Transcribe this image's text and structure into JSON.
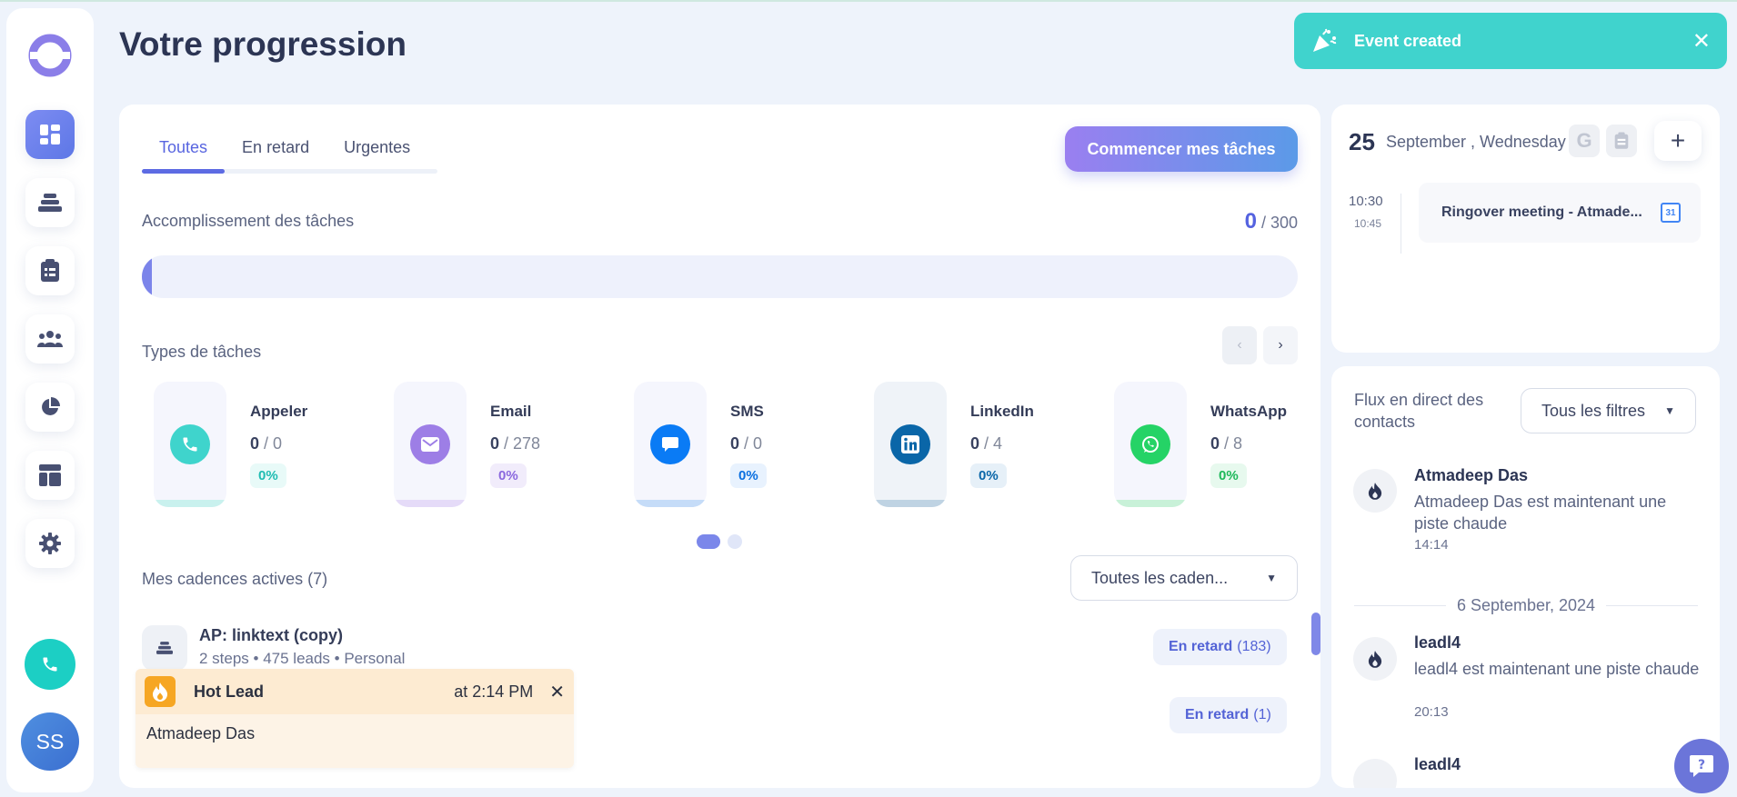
{
  "page": {
    "title": "Votre progression"
  },
  "toast": {
    "text": "Event created"
  },
  "sidebar": {
    "items": [
      {
        "name": "dashboard-icon",
        "active": true
      },
      {
        "name": "cadences-icon"
      },
      {
        "name": "tasks-icon"
      },
      {
        "name": "contacts-icon"
      },
      {
        "name": "stats-icon"
      },
      {
        "name": "templates-icon"
      },
      {
        "name": "settings-icon"
      }
    ],
    "avatar_initials": "SS"
  },
  "main": {
    "tabs": [
      {
        "label": "Toutes",
        "active": true
      },
      {
        "label": "En retard"
      },
      {
        "label": "Urgentes"
      }
    ],
    "start_button": "Commencer mes tâches",
    "completion": {
      "label": "Accomplissement des tâches",
      "done": "0",
      "total": "/ 300",
      "progress_fraction": 0
    },
    "task_types": {
      "label": "Types de tâches",
      "items": [
        {
          "name": "Appeler",
          "done": "0",
          "total": "/ 0",
          "pct": "0%",
          "icon": "phone-icon",
          "color": "#3fd4cc"
        },
        {
          "name": "Email",
          "done": "0",
          "total": "/ 278",
          "pct": "0%",
          "icon": "email-icon",
          "color": "#9d7ee6"
        },
        {
          "name": "SMS",
          "done": "0",
          "total": "/ 0",
          "pct": "0%",
          "icon": "sms-icon",
          "color": "#0a7bf5"
        },
        {
          "name": "LinkedIn",
          "done": "0",
          "total": "/ 4",
          "pct": "0%",
          "icon": "linkedin-icon",
          "color": "#0a66a8"
        },
        {
          "name": "WhatsApp",
          "done": "0",
          "total": "/ 8",
          "pct": "0%",
          "icon": "whatsapp-icon",
          "color": "#25d366"
        }
      ]
    },
    "cadences": {
      "label": "Mes cadences actives (7)",
      "filter": "Toutes les caden...",
      "items": [
        {
          "title": "AP: linktext (copy)",
          "meta": "2 steps • 475 leads • Personal",
          "late_label": "En retard",
          "late_count": "(183)"
        },
        {
          "late_label": "En retard",
          "late_count": "(1)"
        }
      ]
    }
  },
  "hot_lead": {
    "title": "Hot Lead",
    "time": "at 2:14 PM",
    "name": "Atmadeep Das"
  },
  "calendar": {
    "day": "25",
    "date": "September , Wednesday",
    "google_label": "G",
    "event": {
      "start": "10:30",
      "end": "10:45",
      "title": "Ringover meeting - Atmade...",
      "badge": "31"
    }
  },
  "feed": {
    "title": "Flux en direct des contacts",
    "filter": "Tous les filtres",
    "items": [
      {
        "name": "Atmadeep Das",
        "text": "Atmadeep Das est maintenant une piste chaude",
        "time": "14:14"
      },
      {
        "name": "leadl4",
        "text": "leadl4 est maintenant une piste chaude",
        "time": "20:13"
      },
      {
        "name": "leadl4"
      }
    ],
    "divider": "6 September, 2024"
  },
  "colors": {
    "accent": "#5d6be3",
    "toast": "#40d3cd",
    "hot_lead_bg": "#fdebd2"
  }
}
